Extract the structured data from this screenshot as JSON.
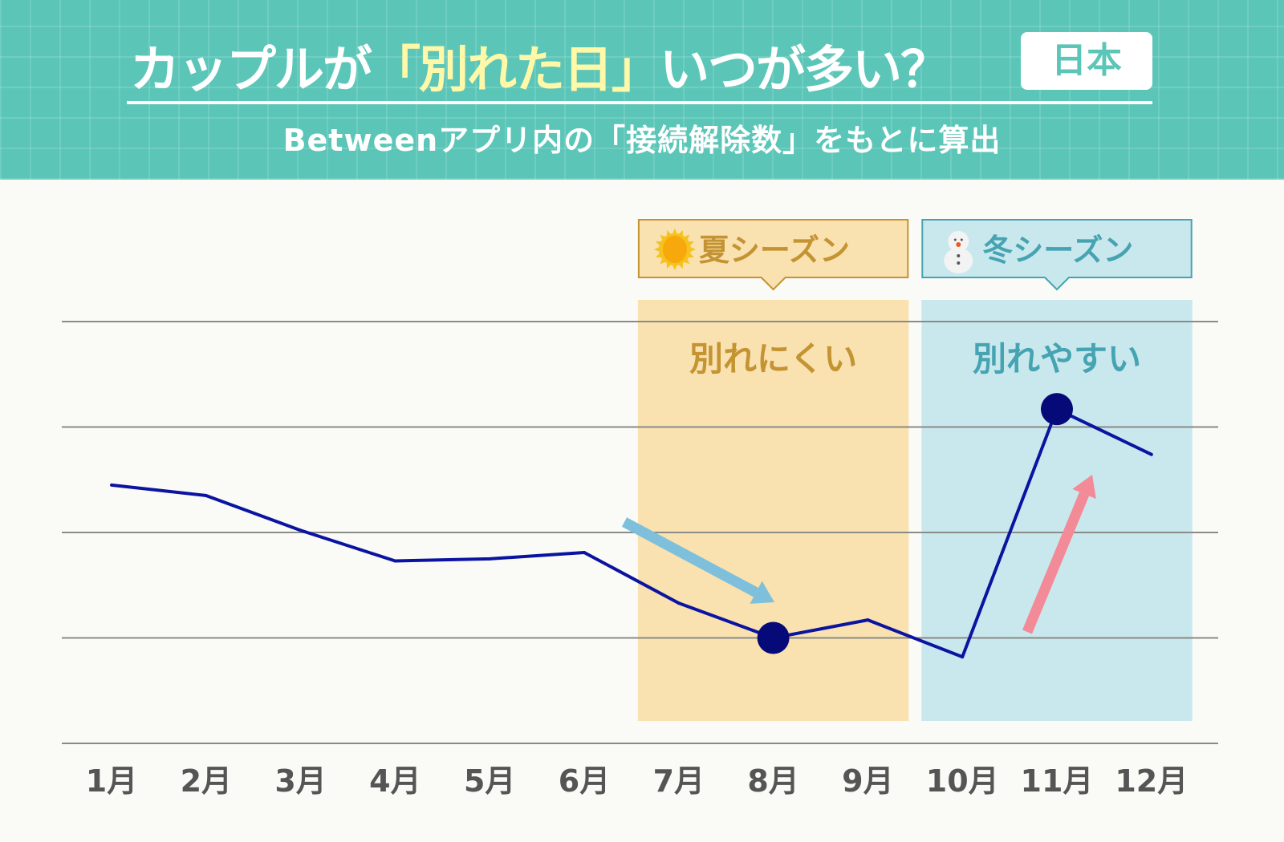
{
  "header": {
    "title_pre": "カップルが",
    "title_highlight": "「別れた日」",
    "title_post": "いつが多い？",
    "badge": "日本",
    "subtitle": "Betweenアプリ内の「接続解除数」をもとに算出"
  },
  "colors": {
    "header_bg": "#5bc6b8",
    "highlight": "#fff8a8",
    "line": "#0a14a0",
    "marker": "#050a78",
    "summer_band": "#f9e1b0",
    "summer_text": "#c49332",
    "winter_band": "#c8e8ee",
    "winter_text": "#46a3b1",
    "down_arrow": "#7ec0dc",
    "up_arrow": "#f38a98"
  },
  "chart_data": {
    "type": "line",
    "categories": [
      "1月",
      "2月",
      "3月",
      "4月",
      "5月",
      "6月",
      "7月",
      "8月",
      "9月",
      "10月",
      "11月",
      "12月"
    ],
    "values": [
      2.45,
      2.35,
      2.02,
      1.73,
      1.75,
      1.81,
      1.33,
      1.0,
      1.17,
      0.82,
      3.17,
      2.74
    ],
    "ylim": [
      0,
      4
    ],
    "y_tick_labels": "none (relative scale, 5 horizontal gridlines)",
    "grid": true,
    "highlighted_points": [
      "8月",
      "11月"
    ],
    "bands": [
      {
        "label": "夏シーズン",
        "icon": "sun-icon",
        "text": "別れにくい",
        "from": "7月",
        "to": "9月"
      },
      {
        "label": "冬シーズン",
        "icon": "snowman-icon",
        "text": "別れやすい",
        "from": "10月",
        "to": "12月"
      }
    ],
    "arrows": [
      {
        "direction": "down",
        "toward": "8月"
      },
      {
        "direction": "up",
        "toward": "11月"
      }
    ]
  }
}
